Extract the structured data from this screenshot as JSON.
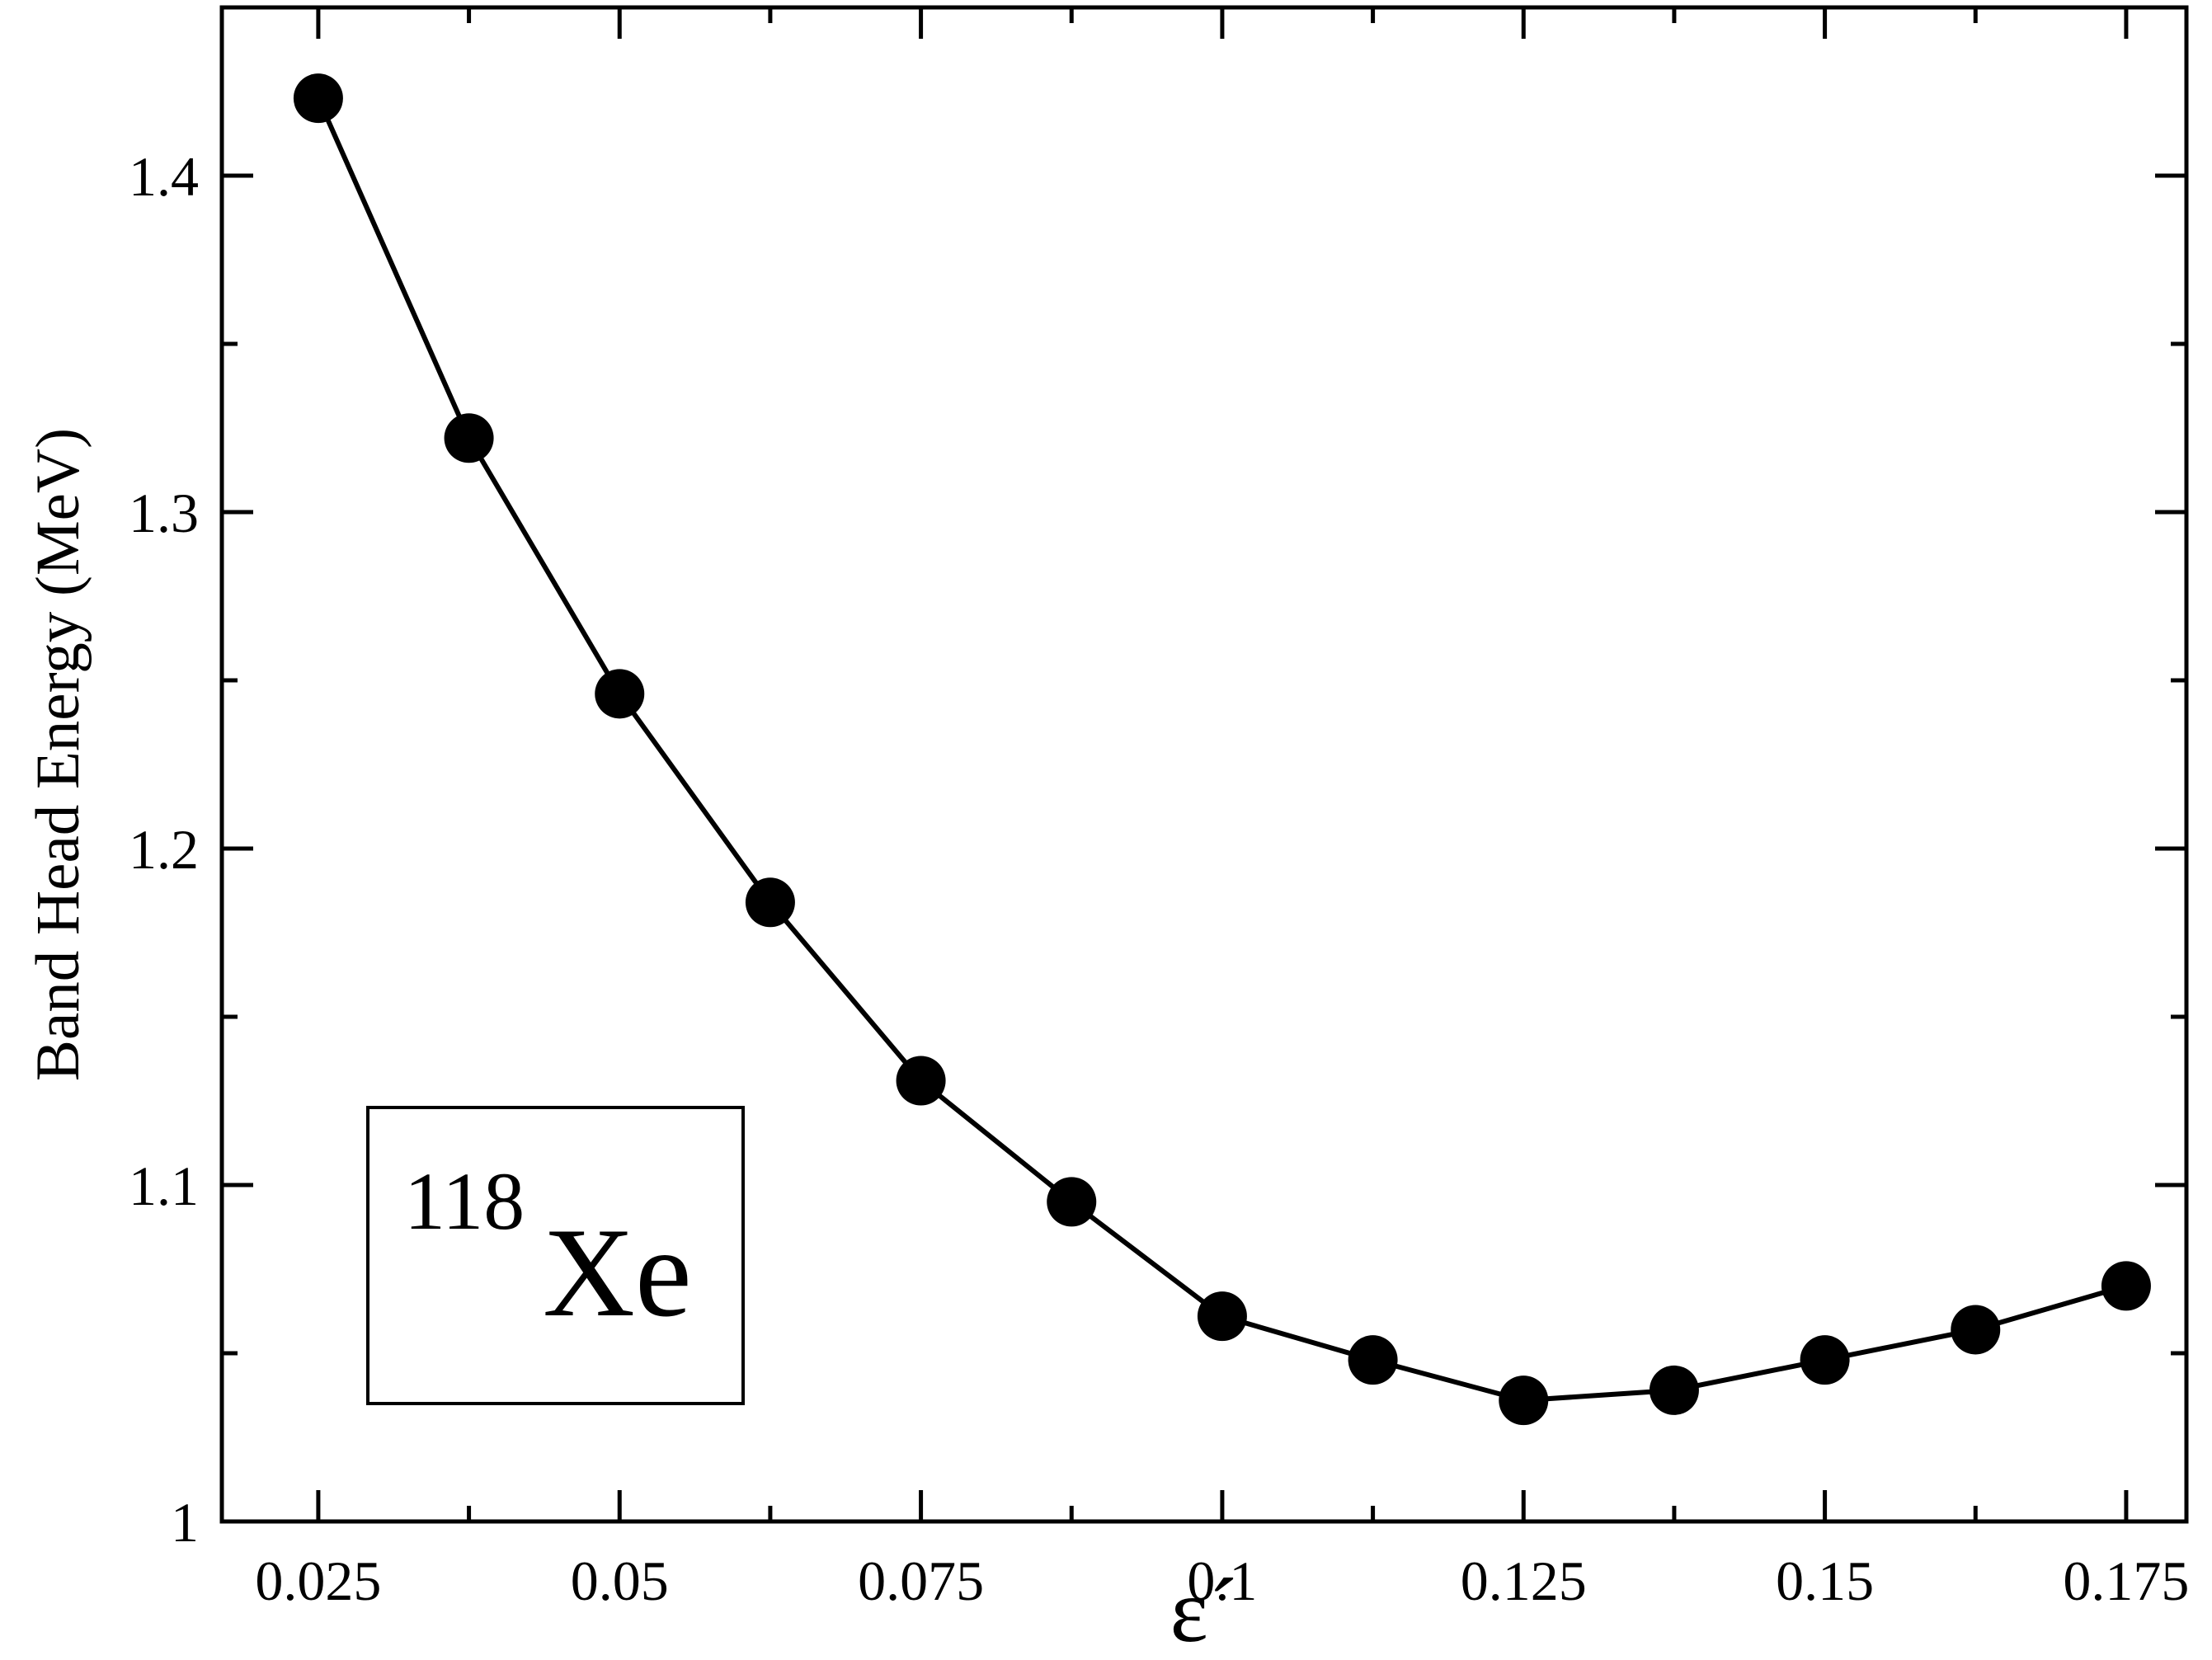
{
  "chart_data": {
    "type": "line",
    "x_label": "ε´",
    "y_label": "Band Head Energy (MeV)",
    "annotation": {
      "mass": "118",
      "element": "Xe"
    },
    "series": [
      {
        "color": "#000000",
        "x": [
          0.025,
          0.0375,
          0.05,
          0.0625,
          0.075,
          0.0875,
          0.1,
          0.1125,
          0.125,
          0.1375,
          0.15,
          0.1625,
          0.175
        ],
        "values": [
          1.423,
          1.322,
          1.246,
          1.184,
          1.131,
          1.095,
          1.061,
          1.048,
          1.036,
          1.039,
          1.048,
          1.057,
          1.07
        ]
      }
    ],
    "xlim": [
      0.017,
      0.18
    ],
    "ylim": [
      1,
      1.45
    ],
    "xticks": [
      0.025,
      0.05,
      0.075,
      0.1,
      0.125,
      0.15,
      0.175
    ],
    "xminorticks": [
      0.0375,
      0.0625,
      0.0875,
      0.1125,
      0.1375,
      0.1625
    ],
    "yticks": [
      1,
      1.1,
      1.2,
      1.3,
      1.4
    ],
    "yminorticks": [
      1.05,
      1.15,
      1.25,
      1.35
    ]
  }
}
